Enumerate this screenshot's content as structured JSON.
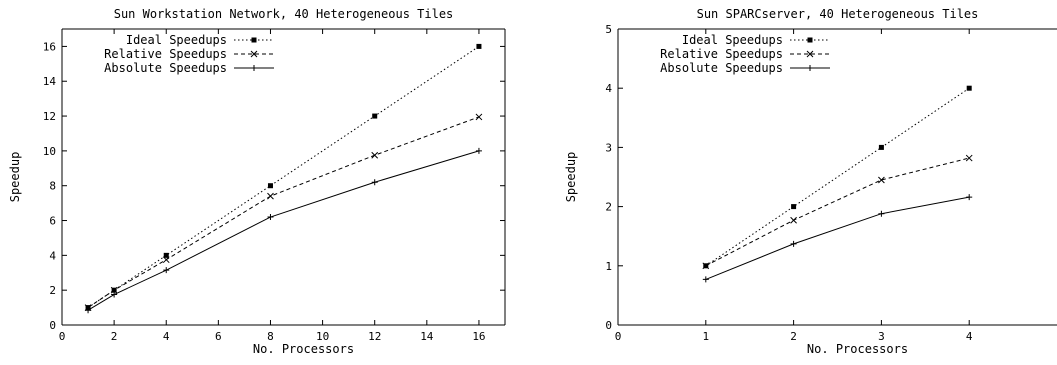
{
  "chart_data": [
    {
      "type": "line",
      "title": "Sun Workstation Network, 40 Heterogeneous Tiles",
      "xlabel": "No. Processors",
      "ylabel": "Speedup",
      "xlim": [
        0,
        17
      ],
      "ylim": [
        0,
        17
      ],
      "xticks": [
        0,
        2,
        4,
        6,
        8,
        10,
        12,
        14,
        16
      ],
      "yticks": [
        0,
        2,
        4,
        6,
        8,
        10,
        12,
        14,
        16
      ],
      "grid": false,
      "legend": "top-left",
      "series": [
        {
          "name": "Ideal Speedups",
          "style": "dotted",
          "marker": "filled-square",
          "x": [
            1,
            2,
            4,
            8,
            12,
            16
          ],
          "values": [
            1,
            2,
            4,
            8,
            12,
            16
          ]
        },
        {
          "name": "Relative Speedups",
          "style": "dashed",
          "marker": "cross",
          "x": [
            1,
            2,
            4,
            8,
            12,
            16
          ],
          "values": [
            1,
            2,
            3.75,
            7.4,
            9.75,
            11.95
          ]
        },
        {
          "name": "Absolute Speedups",
          "style": "solid",
          "marker": "plus",
          "x": [
            1,
            2,
            4,
            8,
            12,
            16
          ],
          "values": [
            0.85,
            1.75,
            3.15,
            6.2,
            8.2,
            10
          ]
        }
      ]
    },
    {
      "type": "line",
      "title": "Sun SPARCserver, 40 Heterogeneous Tiles",
      "xlabel": "No. Processors",
      "ylabel": "Speedup",
      "xlim": [
        0,
        5
      ],
      "ylim": [
        0,
        5
      ],
      "xticks": [
        0,
        1,
        2,
        3,
        4
      ],
      "yticks": [
        0,
        1,
        2,
        3,
        4,
        5
      ],
      "grid": false,
      "legend": "top-left",
      "series": [
        {
          "name": "Ideal Speedups",
          "style": "dotted",
          "marker": "filled-square",
          "x": [
            1,
            2,
            3,
            4
          ],
          "values": [
            1,
            2,
            3,
            4
          ]
        },
        {
          "name": "Relative Speedups",
          "style": "dashed",
          "marker": "cross",
          "x": [
            1,
            2,
            3,
            4
          ],
          "values": [
            1,
            1.77,
            2.45,
            2.82
          ]
        },
        {
          "name": "Absolute Speedups",
          "style": "solid",
          "marker": "plus",
          "x": [
            1,
            2,
            3,
            4
          ],
          "values": [
            0.77,
            1.37,
            1.88,
            2.16
          ]
        }
      ]
    }
  ]
}
